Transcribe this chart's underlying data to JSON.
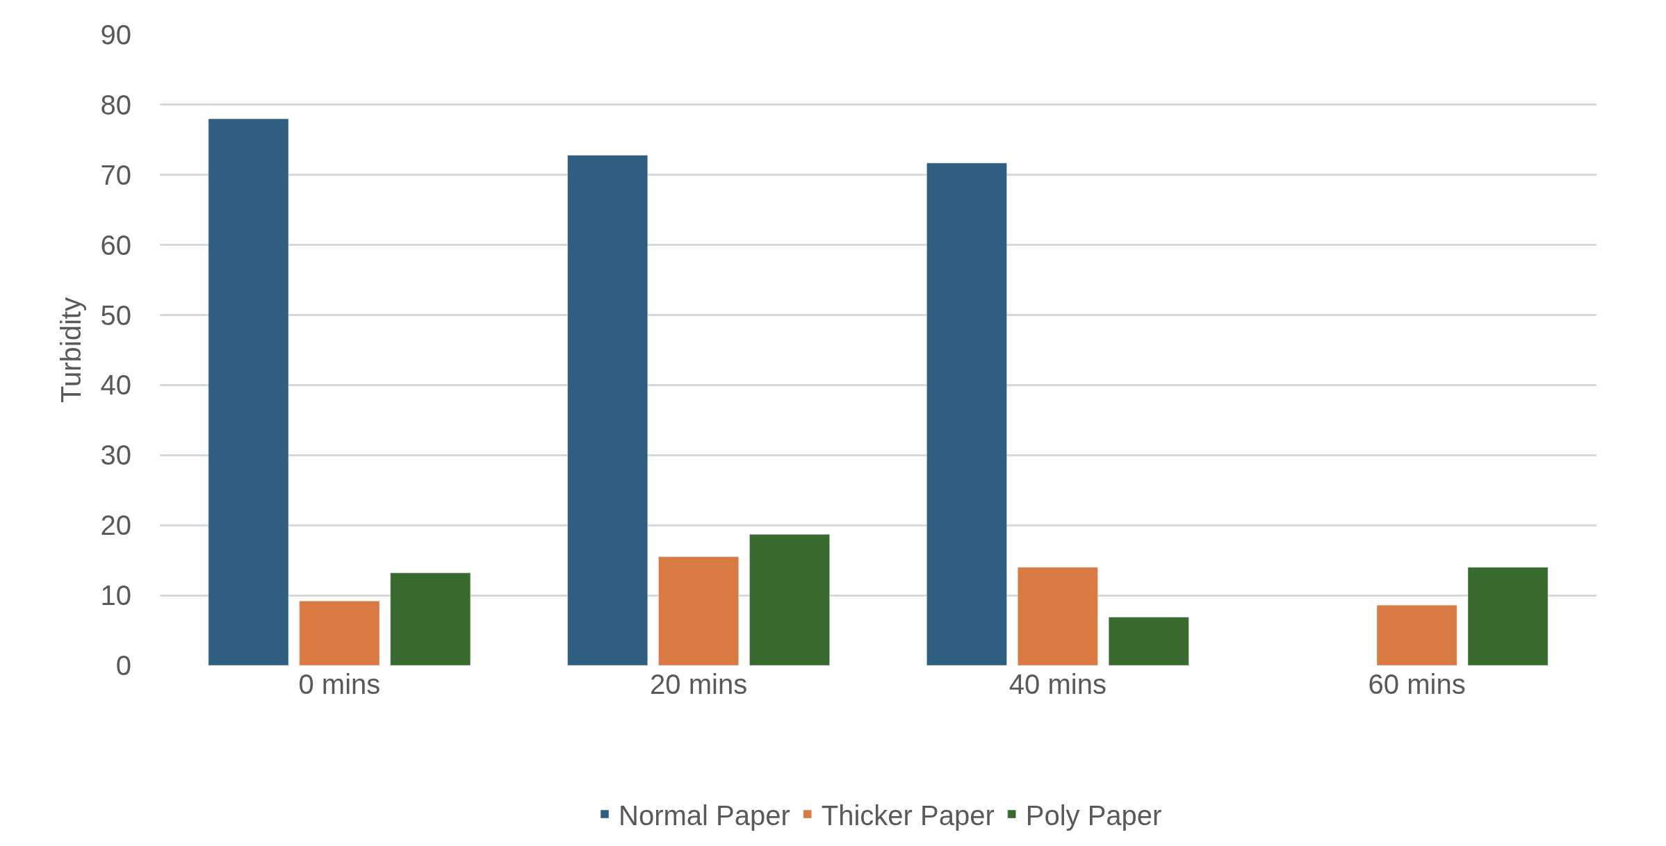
{
  "chart_data": {
    "type": "bar",
    "ylabel": "Turbidity",
    "categories": [
      "0 mins",
      "20 mins",
      "40 mins",
      "60 mins"
    ],
    "series": [
      {
        "name": "Normal Paper",
        "color": "#2e5f80",
        "values": [
          78.0,
          72.8,
          71.7,
          null
        ]
      },
      {
        "name": "Thicker Paper",
        "color": "#d97a42",
        "values": [
          9.2,
          15.5,
          14.0,
          8.6
        ]
      },
      {
        "name": "Poly Paper",
        "color": "#386a2e",
        "values": [
          13.2,
          18.7,
          6.9,
          14.0
        ]
      }
    ],
    "ylim": [
      0,
      90
    ],
    "yticks": [
      0,
      10,
      20,
      30,
      40,
      50,
      60,
      70,
      80,
      90
    ],
    "grid": "y",
    "legend": "bottom"
  }
}
